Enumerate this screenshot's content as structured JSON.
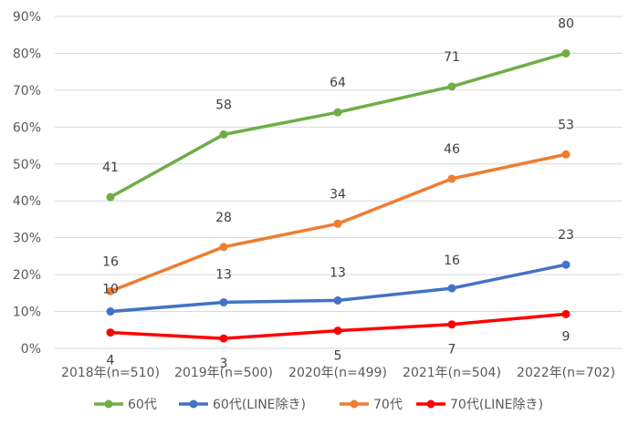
{
  "chart_data": {
    "type": "line",
    "categories": [
      "2018年(n=510)",
      "2019年(n=500)",
      "2020年(n=499)",
      "2021年(n=504)",
      "2022年(n=702)"
    ],
    "ylim": [
      0,
      90
    ],
    "y_ticks": [
      "0%",
      "10%",
      "20%",
      "30%",
      "40%",
      "50%",
      "60%",
      "70%",
      "80%",
      "90%"
    ],
    "grid": true,
    "legend_position": "bottom",
    "series": [
      {
        "name": "60代",
        "color": "#70AD47",
        "values": [
          41,
          58,
          64,
          71,
          80
        ],
        "labels": [
          "41",
          "58",
          "64",
          "71",
          "80"
        ]
      },
      {
        "name": "60代(LINE除き)",
        "color": "#4472C4",
        "values": [
          10,
          12.5,
          13,
          16.3,
          22.7
        ],
        "labels": [
          "10",
          "13",
          "13",
          "16",
          "23"
        ]
      },
      {
        "name": "70代",
        "color": "#ED7D31",
        "values": [
          15.5,
          27.5,
          33.8,
          46,
          52.6
        ],
        "labels": [
          "16",
          "28",
          "34",
          "46",
          "53"
        ]
      },
      {
        "name": "70代(LINE除き)",
        "color": "#FF0000",
        "values": [
          4.3,
          2.7,
          4.8,
          6.5,
          9.3
        ],
        "labels": [
          "4",
          "3",
          "5",
          "7",
          "9"
        ]
      }
    ]
  }
}
